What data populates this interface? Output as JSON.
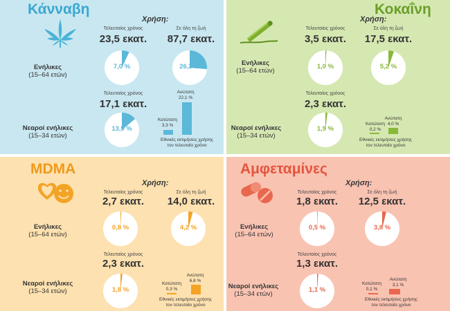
{
  "common": {
    "usage_heading": "Χρήση:",
    "last_year": "Τελευταίος χρόνος",
    "lifetime": "Σε όλη τη ζωή",
    "adults": "Ενήλικες",
    "adults_age": "(15–64 ετών)",
    "young": "Νεαροί ενήλικες",
    "young_age": "(15–34 ετών)",
    "upper": "Ανώτατη",
    "lower": "Κατώτατη",
    "estimates_line1": "Εθνικές εκτιμήσεις χρήσης",
    "estimates_line2": "τον τελευταίο χρόνο"
  },
  "panels": [
    {
      "title": "Κάνναβη",
      "icon": "cannabis-leaf-icon",
      "colors": {
        "bg": "#c9e7f1",
        "accent": "#5bb8d8",
        "title": "#3aa8d0"
      },
      "adults_last_year": "23,5 εκατ.",
      "adults_lifetime": "87,7 εκατ.",
      "adults_last_year_pct": "7,0 %",
      "adults_lifetime_pct": "26,3 %",
      "young_last_year": "17,1 εκατ.",
      "young_last_year_pct": "13,9 %",
      "lowest": "3,3 %",
      "highest": "22,1 %",
      "fractions": {
        "adults_last": 0.07,
        "adults_life": 0.263,
        "young_last": 0.139
      }
    },
    {
      "title": "Κοκαΐνη",
      "icon": "cocaine-line-icon",
      "colors": {
        "bg": "#d6e8b2",
        "accent": "#8ab83a",
        "title": "#6a9f2a"
      },
      "adults_last_year": "3,5 εκατ.",
      "adults_lifetime": "17,5 εκατ.",
      "adults_last_year_pct": "1,0 %",
      "adults_lifetime_pct": "5,2 %",
      "young_last_year": "2,3 εκατ.",
      "young_last_year_pct": "1,9 %",
      "lowest": "0,2 %",
      "highest": "4,0 %",
      "fractions": {
        "adults_last": 0.01,
        "adults_life": 0.052,
        "young_last": 0.019
      }
    },
    {
      "title": "MDMA",
      "icon": "smiley-pills-icon",
      "colors": {
        "bg": "#fde1b0",
        "accent": "#f3a325",
        "title": "#ef9a1a"
      },
      "adults_last_year": "2,7 εκατ.",
      "adults_lifetime": "14,0 εκατ.",
      "adults_last_year_pct": "0,8 %",
      "adults_lifetime_pct": "4,2 %",
      "young_last_year": "2,3 εκατ.",
      "young_last_year_pct": "1,8 %",
      "lowest": "0,3 %",
      "highest": "6,6 %",
      "fractions": {
        "adults_last": 0.008,
        "adults_life": 0.042,
        "young_last": 0.018
      }
    },
    {
      "title": "Αμφεταμίνες",
      "icon": "pills-icon",
      "colors": {
        "bg": "#f9c3b2",
        "accent": "#e8684f",
        "title": "#e4553d"
      },
      "adults_last_year": "1,8 εκατ.",
      "adults_lifetime": "12,5 εκατ.",
      "adults_last_year_pct": "0,5 %",
      "adults_lifetime_pct": "3,8 %",
      "young_last_year": "1,3 εκατ.",
      "young_last_year_pct": "1,1 %",
      "lowest": "0,1 %",
      "highest": "3,1 %",
      "fractions": {
        "adults_last": 0.005,
        "adults_life": 0.038,
        "young_last": 0.011
      }
    }
  ]
}
